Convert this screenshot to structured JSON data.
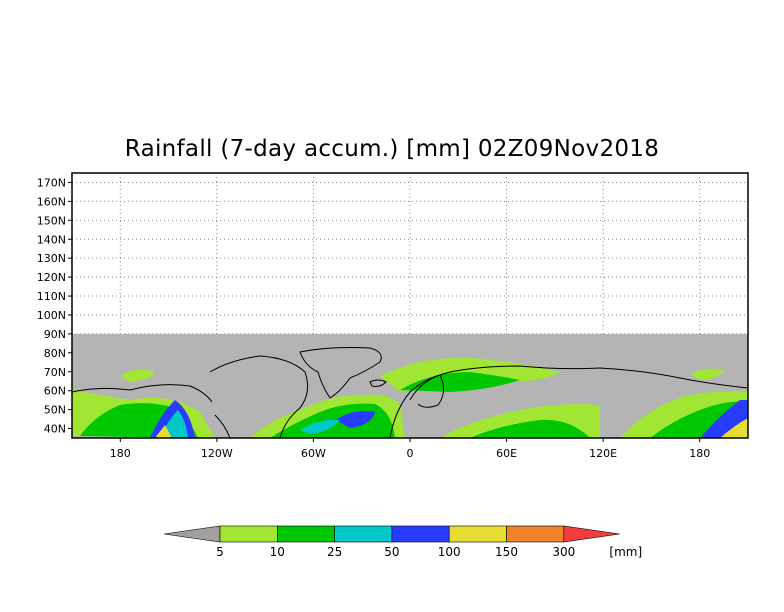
{
  "title": "Rainfall (7-day accum.) [mm] 02Z09Nov2018",
  "map": {
    "lat_labels": [
      "170N",
      "160N",
      "150N",
      "140N",
      "130N",
      "120N",
      "110N",
      "100N",
      "90N",
      "80N",
      "70N",
      "60N",
      "50N",
      "40N"
    ],
    "lat_values": [
      170,
      160,
      150,
      140,
      130,
      120,
      110,
      100,
      90,
      80,
      70,
      60,
      50,
      40
    ],
    "lat_range": [
      35,
      175
    ],
    "lon_labels": [
      "180",
      "120W",
      "60W",
      "0",
      "60E",
      "120E",
      "180"
    ],
    "lon_values": [
      180,
      240,
      300,
      360,
      420,
      480,
      540
    ],
    "lon_range": [
      150,
      570
    ],
    "no_data_color": "#b4b4b4",
    "no_data_lat_max": 90,
    "grid": "dotted"
  },
  "legend": {
    "colors": [
      "#a0a0a0",
      "#a0e632",
      "#00c800",
      "#00c8c8",
      "#283cff",
      "#e6dc32",
      "#f08228",
      "#f03c3c"
    ],
    "labels": [
      "5",
      "10",
      "25",
      "50",
      "100",
      "150",
      "300"
    ],
    "unit": "[mm]"
  }
}
